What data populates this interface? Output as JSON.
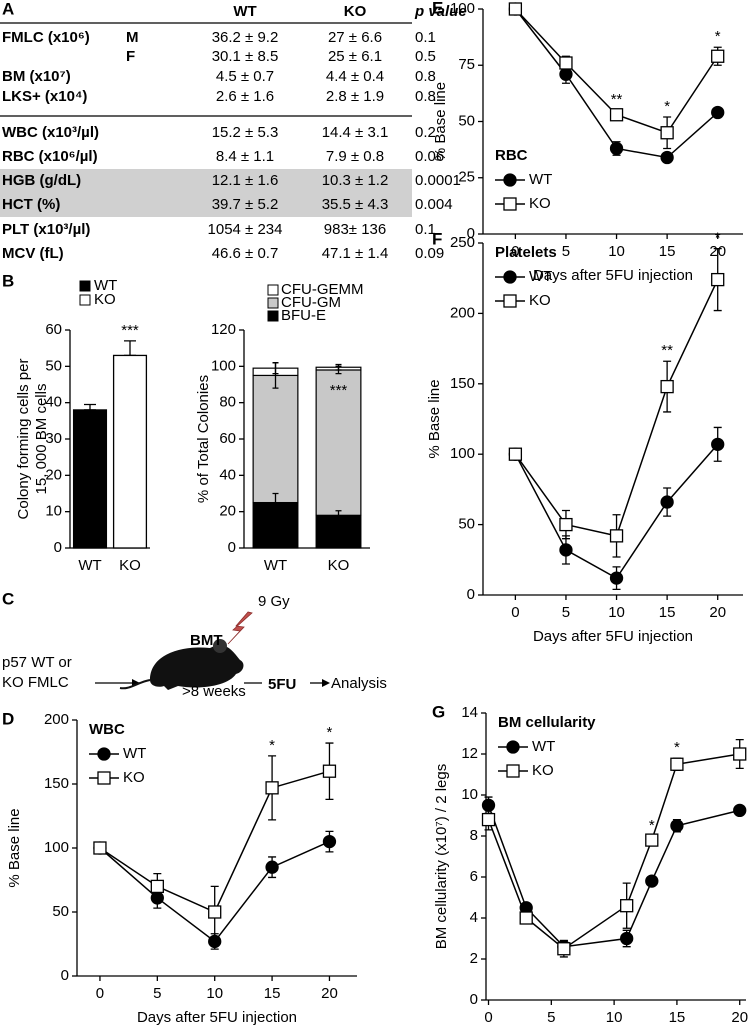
{
  "panel_labels": [
    "A",
    "B",
    "C",
    "D",
    "E",
    "F",
    "G"
  ],
  "table": {
    "columns": [
      "WT",
      "KO",
      "p value"
    ],
    "rows": [
      {
        "label": "FMLC (x10⁶)",
        "group": "M",
        "values": [
          "36.2 ± 9.2",
          "27 ± 6.6",
          "0.1"
        ]
      },
      {
        "group": "F",
        "values": [
          "30.1 ± 8.5",
          "25 ± 6.1",
          "0.5"
        ]
      },
      {
        "label": "BM (x10⁷)",
        "values": [
          "4.5 ± 0.7",
          "4.4 ± 0.4",
          "0.8"
        ]
      },
      {
        "label": "LKS+ (x10⁴)",
        "values": [
          "2.6 ± 1.6",
          "2.8 ± 1.9",
          "0.8"
        ]
      },
      {
        "label": "WBC (x10³/µl)",
        "values": [
          "15.2 ± 5.3",
          "14.4 ± 3.1",
          "0.2"
        ]
      },
      {
        "label": "RBC (x10⁶/µl)",
        "values": [
          "8.4 ± 1.1",
          "7.9 ± 0.8",
          "0.06"
        ]
      },
      {
        "label": "HGB (g/dL)",
        "values": [
          "12.1 ± 1.6",
          "10.3 ± 1.2",
          "0.0001"
        ],
        "shaded": true
      },
      {
        "label": "HCT (%)",
        "values": [
          "39.7 ± 5.2",
          "35.5 ± 4.3",
          "0.004"
        ],
        "shaded": true
      },
      {
        "label": "PLT (x10³/µl)",
        "values": [
          "1054 ± 234",
          "983± 136",
          "0.1"
        ]
      },
      {
        "label": "MCV (fL)",
        "values": [
          "46.6 ± 0.7",
          "47.1 ± 1.4",
          "0.09"
        ]
      }
    ]
  },
  "diagram": {
    "source": [
      "p57 WT or",
      "KO FMLC"
    ],
    "procedure": "BMT",
    "dose": "9 Gy",
    "duration": ">8 weeks",
    "treatment": "5FU",
    "end": "Analysis"
  },
  "chart_data": [
    {
      "type": "bar",
      "ylabel": [
        "Colony forming cells per",
        "15, 000 BM cells"
      ],
      "categories": [
        "WT",
        "KO"
      ],
      "values": [
        38,
        53
      ],
      "errors": [
        1.5,
        4
      ],
      "colors": [
        "#000000",
        "#ffffff"
      ],
      "ylim": [
        0,
        60
      ],
      "yticks": [
        0,
        10,
        20,
        30,
        40,
        50,
        60
      ],
      "annotations": [
        {
          "text": "***",
          "category": "KO"
        }
      ]
    },
    {
      "type": "stacked_bar",
      "ylabel": "% of Total Colonies",
      "categories": [
        "WT",
        "KO"
      ],
      "series": [
        {
          "name": "BFU-E",
          "color": "#000000",
          "values": [
            25,
            18
          ],
          "errors": [
            5,
            2.5
          ]
        },
        {
          "name": "CFU-GM",
          "color": "#c8c8c8",
          "values": [
            70,
            80
          ],
          "errors": [
            7,
            2
          ]
        },
        {
          "name": "CFU-GEMM",
          "color": "#ffffff",
          "values": [
            4,
            1.5
          ],
          "errors": [
            3,
            1.5
          ]
        }
      ],
      "ylim": [
        0,
        120
      ],
      "yticks": [
        0,
        20,
        40,
        60,
        80,
        100,
        120
      ],
      "annotations": [
        {
          "text": "***",
          "category": "KO"
        }
      ]
    },
    {
      "type": "line",
      "legend_title": "WBC",
      "xlabel": "Days after 5FU injection",
      "ylabel": "% Base line",
      "x": [
        0,
        5,
        10,
        15,
        20
      ],
      "series": [
        {
          "name": "WT",
          "color": "#000000",
          "marker": "circle",
          "values": [
            100,
            61,
            27,
            85,
            105
          ],
          "errors": [
            0,
            8,
            6,
            8,
            8
          ]
        },
        {
          "name": "KO",
          "color": "#ffffff",
          "marker": "square",
          "values": [
            100,
            70,
            50,
            147,
            160
          ],
          "errors": [
            0,
            10,
            20,
            25,
            22
          ]
        }
      ],
      "xlim": [
        -2,
        22.4
      ],
      "xticks": [
        0,
        5,
        10,
        15,
        20
      ],
      "ylim": [
        0,
        200
      ],
      "yticks": [
        0,
        50,
        100,
        150,
        200
      ],
      "legend": "upper left",
      "annotations": [
        {
          "text": "*",
          "x": 15
        },
        {
          "text": "*",
          "x": 20
        }
      ]
    },
    {
      "type": "line",
      "legend_title": "RBC",
      "xlabel": "Days after 5FU injection",
      "ylabel": "% Base line",
      "x": [
        0,
        5,
        10,
        15,
        20
      ],
      "series": [
        {
          "name": "WT",
          "color": "#000000",
          "marker": "circle",
          "values": [
            100,
            71,
            38,
            34,
            54
          ],
          "errors": [
            0,
            4,
            3,
            2,
            2
          ]
        },
        {
          "name": "KO",
          "color": "#ffffff",
          "marker": "square",
          "values": [
            100,
            76,
            53,
            45,
            79
          ],
          "errors": [
            0,
            3,
            2,
            7,
            4
          ]
        }
      ],
      "xlim": [
        -3.2,
        22.5
      ],
      "xticks": [
        0,
        5,
        10,
        15,
        20
      ],
      "ylim": [
        0,
        100
      ],
      "yticks": [
        0,
        25,
        50,
        75,
        100
      ],
      "legend": "lower left",
      "annotations": [
        {
          "text": "**",
          "x": 10
        },
        {
          "text": "*",
          "x": 15
        },
        {
          "text": "*",
          "x": 20
        }
      ]
    },
    {
      "type": "line",
      "legend_title": "Platelets",
      "xlabel": "Days after 5FU injection",
      "ylabel": "% Base line",
      "x": [
        0,
        5,
        10,
        15,
        20
      ],
      "series": [
        {
          "name": "WT",
          "color": "#000000",
          "marker": "circle",
          "values": [
            100,
            32,
            12,
            66,
            107
          ],
          "errors": [
            0,
            10,
            8,
            10,
            12
          ]
        },
        {
          "name": "KO",
          "color": "#ffffff",
          "marker": "square",
          "values": [
            100,
            50,
            42,
            148,
            224
          ],
          "errors": [
            0,
            10,
            15,
            18,
            22
          ]
        }
      ],
      "xlim": [
        -3.2,
        22.5
      ],
      "xticks": [
        0,
        5,
        10,
        15,
        20
      ],
      "ylim": [
        0,
        250
      ],
      "yticks": [
        0,
        50,
        100,
        150,
        200,
        250
      ],
      "legend": "upper left",
      "annotations": [
        {
          "text": "**",
          "x": 15
        },
        {
          "text": "*",
          "x": 20
        }
      ]
    },
    {
      "type": "line",
      "legend_title": "BM cellularity",
      "xlabel": "Days after 5FU injection",
      "ylabel": "BM cellularity (x10⁷) / 2 legs",
      "x": [
        0,
        3,
        6,
        11,
        13,
        15,
        20
      ],
      "series": [
        {
          "name": "WT",
          "color": "#000000",
          "marker": "circle",
          "values": [
            9.5,
            4.5,
            2.6,
            3.0,
            5.8,
            8.5,
            9.25
          ],
          "errors": [
            0.4,
            0.2,
            0.3,
            0.4,
            0.2,
            0.3,
            0.2
          ]
        },
        {
          "name": "KO",
          "color": "#ffffff",
          "marker": "square",
          "values": [
            8.8,
            4.0,
            2.5,
            4.6,
            7.8,
            11.5,
            12.0
          ],
          "errors": [
            0.5,
            0.2,
            0.4,
            1.1,
            0.2,
            0.3,
            0.7
          ]
        }
      ],
      "xlim": [
        -0.2,
        20.5
      ],
      "xticks": [
        0,
        5,
        10,
        15,
        20
      ],
      "ylim": [
        0,
        14
      ],
      "yticks": [
        0,
        2,
        4,
        6,
        8,
        10,
        12,
        14
      ],
      "legend": "upper left",
      "annotations": [
        {
          "text": "*",
          "x": 13
        },
        {
          "text": "*",
          "x": 15
        }
      ]
    }
  ]
}
